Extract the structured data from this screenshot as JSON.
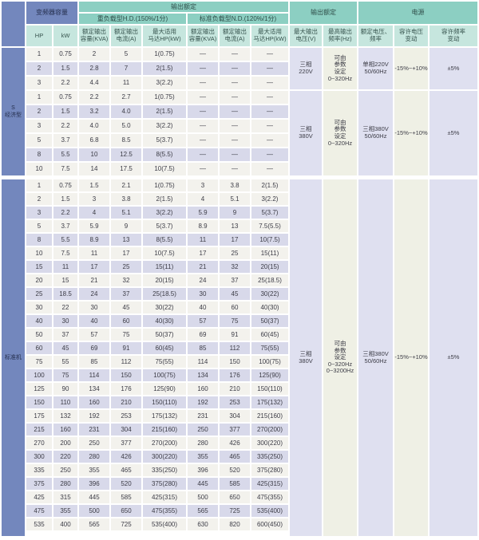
{
  "table": {
    "groups": {
      "inverter_capacity": "变频器容量",
      "output_rating_left": "输出额定",
      "heavy_duty": "重负载型H.D.(150%/1分)",
      "normal_duty": "标准负载型N.D.(120%/1分)",
      "output_rating_right": "输出额定",
      "power_supply": "电源"
    },
    "columns": [
      "HP",
      "kW",
      "额定输出\n容量(KVA)",
      "额定输出\n电流(A)",
      "最大适用\n马达HP(kW)",
      "额定输出\n容量(KVA)",
      "额定输出\n电流(A)",
      "最大适用\n马达HP(kW)",
      "最大输出\n电压(V)",
      "最高输出\n频率(Hz)",
      "额定电压、\n频率",
      "容许电压\n变动",
      "容许频率\n变动"
    ],
    "sections": [
      {
        "label": "S\n经济型",
        "groups": [
          {
            "rows": [
              [
                "1",
                "0.75",
                "2",
                "5",
                "1(0.75)",
                "—",
                "—",
                "—"
              ],
              [
                "2",
                "1.5",
                "2.8",
                "7",
                "2(1.5)",
                "—",
                "—",
                "—"
              ],
              [
                "3",
                "2.2",
                "4.4",
                "11",
                "3(2.2)",
                "—",
                "—",
                "—"
              ]
            ],
            "specs": {
              "max_voltage": "三相\n220V",
              "max_freq": "可由\n参数\n设定\n0~320Hz",
              "rated_voltage_freq": "单相220V\n50/60Hz",
              "voltage_tolerance": "-15%~+10%",
              "freq_tolerance": "±5%"
            }
          },
          {
            "rows": [
              [
                "1",
                "0.75",
                "2.2",
                "2.7",
                "1(0.75)",
                "—",
                "—",
                "—"
              ],
              [
                "2",
                "1.5",
                "3.2",
                "4.0",
                "2(1.5)",
                "—",
                "—",
                "—"
              ],
              [
                "3",
                "2.2",
                "4.0",
                "5.0",
                "3(2.2)",
                "—",
                "—",
                "—"
              ],
              [
                "5",
                "3.7",
                "6.8",
                "8.5",
                "5(3.7)",
                "—",
                "—",
                "—"
              ],
              [
                "8",
                "5.5",
                "10",
                "12.5",
                "8(5.5)",
                "—",
                "—",
                "—"
              ],
              [
                "10",
                "7.5",
                "14",
                "17.5",
                "10(7.5)",
                "—",
                "—",
                "—"
              ]
            ],
            "specs": {
              "max_voltage": "三相\n380V",
              "max_freq": "可由\n参数\n设定\n0~320Hz",
              "rated_voltage_freq": "三相380V\n50/60Hz",
              "voltage_tolerance": "-15%~+10%",
              "freq_tolerance": "±5%"
            }
          }
        ]
      },
      {
        "label": "标准机",
        "groups": [
          {
            "rows": [
              [
                "1",
                "0.75",
                "1.5",
                "2.1",
                "1(0.75)",
                "3",
                "3.8",
                "2(1.5)"
              ],
              [
                "2",
                "1.5",
                "3",
                "3.8",
                "2(1.5)",
                "4",
                "5.1",
                "3(2.2)"
              ],
              [
                "3",
                "2.2",
                "4",
                "5.1",
                "3(2.2)",
                "5.9",
                "9",
                "5(3.7)"
              ],
              [
                "5",
                "3.7",
                "5.9",
                "9",
                "5(3.7)",
                "8.9",
                "13",
                "7.5(5.5)"
              ],
              [
                "8",
                "5.5",
                "8.9",
                "13",
                "8(5.5)",
                "11",
                "17",
                "10(7.5)"
              ],
              [
                "10",
                "7.5",
                "11",
                "17",
                "10(7.5)",
                "17",
                "25",
                "15(11)"
              ],
              [
                "15",
                "11",
                "17",
                "25",
                "15(11)",
                "21",
                "32",
                "20(15)"
              ],
              [
                "20",
                "15",
                "21",
                "32",
                "20(15)",
                "24",
                "37",
                "25(18.5)"
              ],
              [
                "25",
                "18.5",
                "24",
                "37",
                "25(18.5)",
                "30",
                "45",
                "30(22)"
              ],
              [
                "30",
                "22",
                "30",
                "45",
                "30(22)",
                "40",
                "60",
                "40(30)"
              ],
              [
                "40",
                "30",
                "40",
                "60",
                "40(30)",
                "57",
                "75",
                "50(37)"
              ],
              [
                "50",
                "37",
                "57",
                "75",
                "50(37)",
                "69",
                "91",
                "60(45)"
              ],
              [
                "60",
                "45",
                "69",
                "91",
                "60(45)",
                "85",
                "112",
                "75(55)"
              ],
              [
                "75",
                "55",
                "85",
                "112",
                "75(55)",
                "114",
                "150",
                "100(75)"
              ],
              [
                "100",
                "75",
                "114",
                "150",
                "100(75)",
                "134",
                "176",
                "125(90)"
              ],
              [
                "125",
                "90",
                "134",
                "176",
                "125(90)",
                "160",
                "210",
                "150(110)"
              ],
              [
                "150",
                "110",
                "160",
                "210",
                "150(110)",
                "192",
                "253",
                "175(132)"
              ],
              [
                "175",
                "132",
                "192",
                "253",
                "175(132)",
                "231",
                "304",
                "215(160)"
              ],
              [
                "215",
                "160",
                "231",
                "304",
                "215(160)",
                "250",
                "377",
                "270(200)"
              ],
              [
                "270",
                "200",
                "250",
                "377",
                "270(200)",
                "280",
                "426",
                "300(220)"
              ],
              [
                "300",
                "220",
                "280",
                "426",
                "300(220)",
                "355",
                "465",
                "335(250)"
              ],
              [
                "335",
                "250",
                "355",
                "465",
                "335(250)",
                "396",
                "520",
                "375(280)"
              ],
              [
                "375",
                "280",
                "396",
                "520",
                "375(280)",
                "445",
                "585",
                "425(315)"
              ],
              [
                "425",
                "315",
                "445",
                "585",
                "425(315)",
                "500",
                "650",
                "475(355)"
              ],
              [
                "475",
                "355",
                "500",
                "650",
                "475(355)",
                "565",
                "725",
                "535(400)"
              ],
              [
                "535",
                "400",
                "565",
                "725",
                "535(400)",
                "630",
                "820",
                "600(450)"
              ]
            ],
            "specs": {
              "max_voltage": "三相\n380V",
              "max_freq": "可由\n参数\n设定\n0~320Hz\n0~3200Hz",
              "rated_voltage_freq": "三相380V\n50/60Hz",
              "voltage_tolerance": "-15%~+10%",
              "freq_tolerance": "±5%"
            }
          }
        ]
      }
    ],
    "colors": {
      "group_header": "#8ccfc2",
      "column_header": "#c6e6de",
      "category_blue": "#7387bd",
      "row_light": "#f3f2ed",
      "row_lavender": "#d8d9ea",
      "merged_lavender": "#dfe0f0",
      "merged_pale": "#eff0e5"
    }
  }
}
